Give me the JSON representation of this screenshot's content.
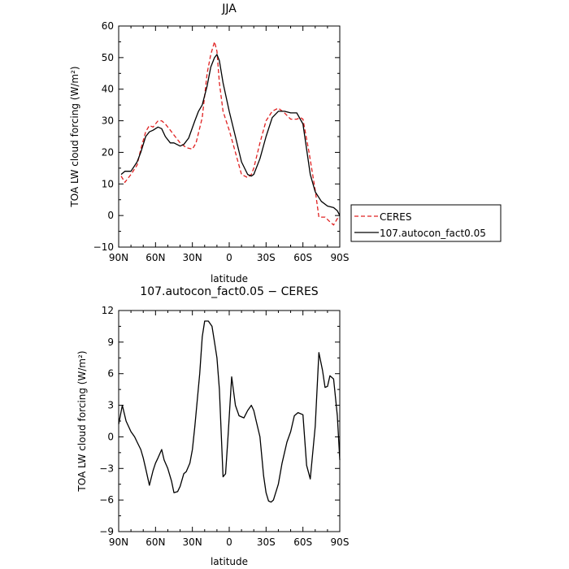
{
  "chart_data": [
    {
      "type": "line",
      "title": "JJA",
      "xlabel": "latitude",
      "ylabel": "TOA LW cloud forcing (W/m²)",
      "xlim": [
        90,
        -90
      ],
      "ylim": [
        -10,
        60
      ],
      "x_ticks": [
        90,
        60,
        30,
        0,
        -30,
        -60,
        -90
      ],
      "x_tick_labels": [
        "90N",
        "60N",
        "30N",
        "0",
        "30S",
        "60S",
        "90S"
      ],
      "y_ticks": [
        -10,
        0,
        10,
        20,
        30,
        40,
        50,
        60
      ],
      "y_tick_labels": [
        "−10",
        "0",
        "10",
        "20",
        "30",
        "40",
        "50",
        "60"
      ],
      "legend_position": "right",
      "series": [
        {
          "name": "CERES",
          "color": "#e02020",
          "dash": "dashed",
          "x": [
            88,
            85,
            80,
            75,
            72,
            68,
            65,
            62,
            58,
            55,
            52,
            48,
            45,
            40,
            35,
            30,
            27,
            22,
            18,
            15,
            12,
            10,
            8,
            5,
            3,
            0,
            -5,
            -10,
            -15,
            -18,
            -20,
            -25,
            -30,
            -35,
            -40,
            -45,
            -50,
            -55,
            -58,
            -60,
            -65,
            -70,
            -73,
            -78,
            -82,
            -85,
            -88,
            -90
          ],
          "y": [
            12.5,
            10.5,
            13,
            16,
            21,
            26.5,
            28.5,
            28,
            30,
            30,
            29,
            27,
            25.5,
            23,
            21.5,
            21,
            23,
            31,
            45,
            51,
            55,
            52,
            42,
            33,
            30.5,
            27,
            20,
            13,
            12,
            13,
            15,
            23,
            30,
            33,
            34,
            32.5,
            30.5,
            30.5,
            31,
            30.5,
            20,
            8,
            -0.5,
            -0.5,
            -2,
            -3,
            -1,
            0
          ]
        },
        {
          "name": "107.autocon_fact0.05",
          "color": "#000000",
          "dash": "solid",
          "x": [
            88,
            85,
            80,
            75,
            72,
            68,
            65,
            62,
            58,
            55,
            52,
            48,
            45,
            40,
            37,
            33,
            28,
            25,
            22,
            18,
            15,
            12,
            10,
            8,
            5,
            0,
            -5,
            -10,
            -15,
            -18,
            -20,
            -25,
            -30,
            -35,
            -40,
            -45,
            -50,
            -55,
            -60,
            -63,
            -66,
            -70,
            -75,
            -80,
            -85,
            -88,
            -90
          ],
          "y": [
            13,
            14,
            14,
            17,
            20,
            25,
            26.5,
            27,
            28,
            27.5,
            25,
            23,
            23,
            22,
            22.5,
            24.5,
            30,
            33,
            35,
            41,
            47,
            50,
            51,
            49,
            42,
            33,
            25,
            17,
            13,
            12.5,
            13,
            18,
            25,
            31,
            33,
            33,
            32.5,
            32.5,
            29,
            21,
            13,
            7.5,
            4.5,
            3,
            2.5,
            1.5,
            0
          ]
        }
      ]
    },
    {
      "type": "line",
      "title": "107.autocon_fact0.05 − CERES",
      "xlabel": "latitude",
      "ylabel": "TOA LW cloud forcing (W/m²)",
      "xlim": [
        90,
        -90
      ],
      "ylim": [
        -9,
        12
      ],
      "x_ticks": [
        90,
        60,
        30,
        0,
        -30,
        -60,
        -90
      ],
      "x_tick_labels": [
        "90N",
        "60N",
        "30N",
        "0",
        "30S",
        "60S",
        "90S"
      ],
      "y_ticks": [
        -9,
        -6,
        -3,
        0,
        3,
        6,
        9,
        12
      ],
      "y_tick_labels": [
        "−9",
        "−6",
        "−3",
        "0",
        "3",
        "6",
        "9",
        "12"
      ],
      "series": [
        {
          "color": "#000000",
          "dash": "solid",
          "x": [
            90,
            87,
            84,
            80,
            77,
            75,
            72,
            70,
            68,
            65,
            62,
            60,
            58,
            55,
            53,
            50,
            47,
            45,
            42,
            40,
            37,
            35,
            32,
            30,
            28,
            26,
            24,
            22,
            20,
            17,
            14,
            12,
            10,
            8,
            5,
            3,
            1,
            -2,
            -5,
            -8,
            -12,
            -15,
            -18,
            -20,
            -22,
            -25,
            -28,
            -30,
            -32,
            -34,
            -36,
            -40,
            -43,
            -47,
            -50,
            -53,
            -56,
            -60,
            -63,
            -66,
            -70,
            -73,
            -76,
            -78,
            -80,
            -82,
            -85,
            -88,
            -90
          ],
          "y": [
            1.2,
            3,
            1.5,
            0.5,
            0,
            -0.5,
            -1.2,
            -2,
            -3,
            -4.6,
            -3.2,
            -2.5,
            -2,
            -1.2,
            -2.2,
            -3,
            -4.2,
            -5.3,
            -5.2,
            -4.7,
            -3.5,
            -3.3,
            -2.5,
            -1.2,
            1,
            3.5,
            6,
            9.5,
            11,
            11,
            10.5,
            9,
            7.5,
            4.5,
            -3.8,
            -3.5,
            0,
            5.7,
            3,
            2,
            1.8,
            2.5,
            3,
            2.5,
            1.5,
            0,
            -3.7,
            -5.3,
            -6.1,
            -6.2,
            -6,
            -4.5,
            -2.5,
            -0.5,
            0.5,
            2,
            2.3,
            2.1,
            -2.7,
            -4,
            1,
            8,
            6.3,
            4.7,
            4.8,
            5.8,
            5.5,
            2,
            -2.2
          ]
        }
      ]
    }
  ]
}
